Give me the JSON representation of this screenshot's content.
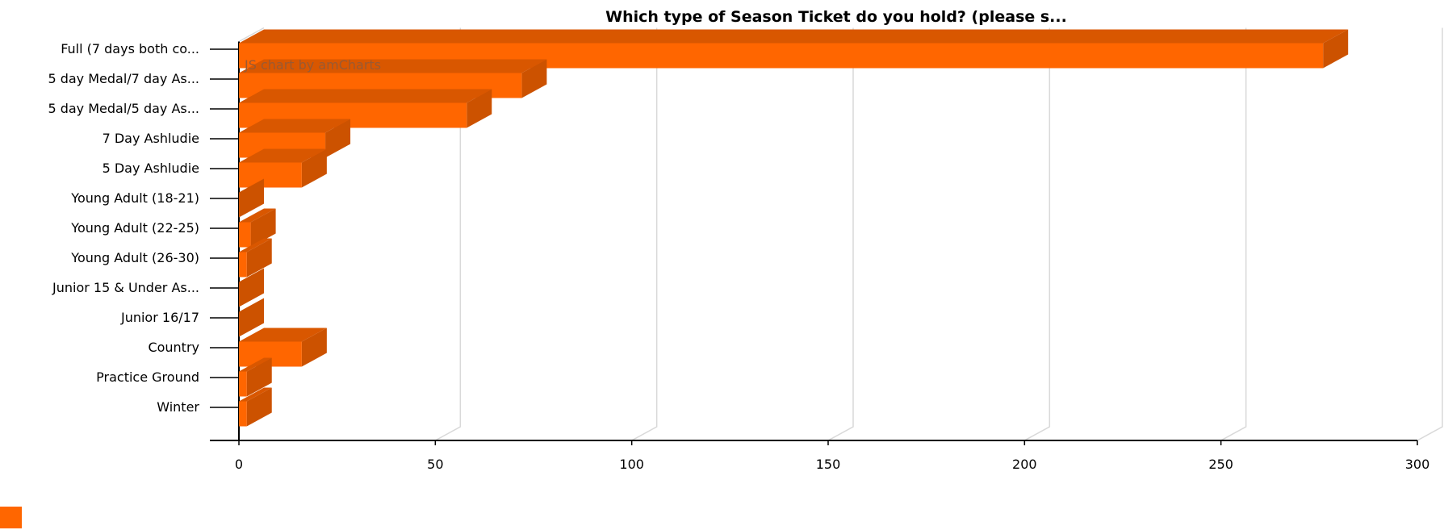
{
  "chart_data": {
    "type": "bar",
    "orientation": "horizontal",
    "three_d": true,
    "title": "Which type of Season Ticket do you hold? (please s...",
    "credit": "JS chart by amCharts",
    "categories": [
      "Full (7 days both co...",
      "5 day Medal/7 day As...",
      "5 day Medal/5 day As...",
      "7 Day Ashludie",
      "5 Day Ashludie",
      "Young Adult (18-21)",
      "Young Adult (22-25)",
      "Young Adult (26-30)",
      "Junior 15 & Under As...",
      "Junior 16/17",
      "Country",
      "Practice Ground",
      "Winter"
    ],
    "values": [
      276,
      72,
      58,
      22,
      16,
      0,
      3,
      2,
      0,
      0,
      16,
      2,
      2
    ],
    "xlim": [
      0,
      300
    ],
    "x_ticks": [
      0,
      50,
      100,
      150,
      200,
      250,
      300
    ],
    "x_tick_labels": [
      "0",
      "50",
      "100",
      "150",
      "200",
      "250",
      "300"
    ],
    "grid": true,
    "legend": "bottom-left",
    "colors": {
      "bar_front": "#ff6600",
      "bar_side": "#cc5200",
      "bar_top": "#d95700",
      "grid": "#d9d9d9",
      "axis": "#000000",
      "credit": "#995a33"
    }
  }
}
